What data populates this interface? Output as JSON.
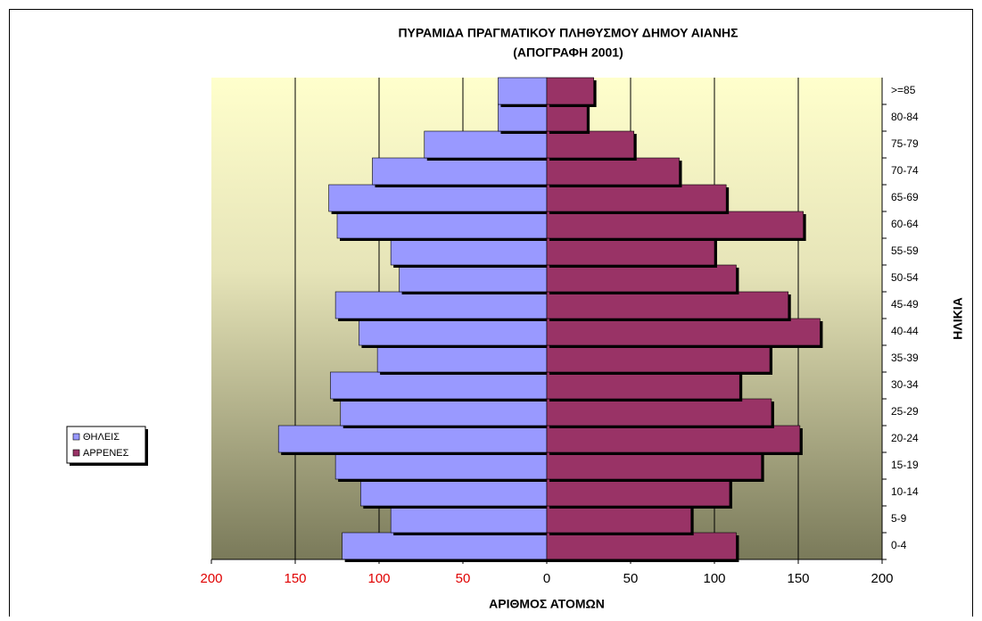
{
  "chart_data": {
    "type": "pyramid",
    "title": [
      "ΠΥΡΑΜΙΔΑ ΠΡΑΓΜΑΤΙΚΟΥ ΠΛΗΘΥΣΜΟΥ  ΔΗΜΟΥ ΑΙΑΝΗΣ",
      "(ΑΠΟΓΡΑΦΗ 2001)"
    ],
    "x_label": "ΑΡΙΘΜΟΣ ΑΤΟΜΩΝ",
    "y_label": "ΗΛΙΚΙΑ",
    "categories": [
      "0-4",
      "5-9",
      "10-14",
      "15-19",
      "20-24",
      "25-29",
      "30-34",
      "35-39",
      "40-44",
      "45-49",
      "50-54",
      "55-59",
      "60-64",
      "65-69",
      "70-74",
      "75-79",
      "80-84",
      ">=85"
    ],
    "series": [
      {
        "name": "ΘΗΛΕΙΣ",
        "color": "#9999ff",
        "values": [
          -122,
          -93,
          -111,
          -126,
          -160,
          -123,
          -129,
          -101,
          -112,
          -126,
          -88,
          -93,
          -125,
          -130,
          -104,
          -73,
          -29,
          -29
        ]
      },
      {
        "name": "ΑΡΡΕΝΕΣ",
        "color": "#993366",
        "values": [
          113,
          86,
          109,
          128,
          151,
          134,
          115,
          133,
          163,
          144,
          113,
          100,
          153,
          107,
          79,
          52,
          24,
          28
        ]
      }
    ],
    "xlim": [
      -200,
      200
    ],
    "xticks": [
      {
        "value": -200,
        "label": "200"
      },
      {
        "value": -150,
        "label": "150"
      },
      {
        "value": -100,
        "label": "100"
      },
      {
        "value": -50,
        "label": "50"
      },
      0,
      50,
      100,
      150,
      200
    ],
    "grid": true,
    "legend": "left"
  }
}
